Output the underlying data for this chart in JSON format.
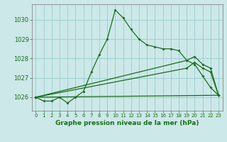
{
  "title": "Graphe pression niveau de la mer (hPa)",
  "bg_color": "#cce8e8",
  "grid_color": "#99cccc",
  "line_color": "#1a6e1a",
  "xlim": [
    -0.5,
    23.5
  ],
  "ylim": [
    1025.3,
    1030.8
  ],
  "yticks": [
    1026,
    1027,
    1028,
    1029,
    1030
  ],
  "xticks": [
    0,
    1,
    2,
    3,
    4,
    5,
    6,
    7,
    8,
    9,
    10,
    11,
    12,
    13,
    14,
    15,
    16,
    17,
    18,
    19,
    20,
    21,
    22,
    23
  ],
  "series_main": {
    "x": [
      0,
      1,
      2,
      3,
      4,
      5,
      6,
      7,
      8,
      9,
      10,
      11,
      12,
      13,
      14,
      15,
      16,
      17,
      18,
      19,
      20,
      21,
      22,
      23
    ],
    "y": [
      1026.0,
      1025.8,
      1025.8,
      1026.0,
      1025.7,
      1026.0,
      1026.3,
      1027.3,
      1028.2,
      1029.0,
      1030.5,
      1030.1,
      1029.5,
      1029.0,
      1028.7,
      1028.6,
      1028.5,
      1028.5,
      1028.4,
      1027.9,
      1027.7,
      1027.1,
      1026.5,
      1026.1
    ]
  },
  "series_flat": {
    "x": [
      0,
      23
    ],
    "y": [
      1026.0,
      1026.1
    ]
  },
  "series_diag1": {
    "x": [
      0,
      19,
      20,
      21,
      22,
      23
    ],
    "y": [
      1026.0,
      1027.5,
      1027.8,
      1027.5,
      1027.3,
      1026.1
    ]
  },
  "series_diag2": {
    "x": [
      0,
      19,
      20,
      21,
      22,
      23
    ],
    "y": [
      1026.0,
      1027.9,
      1028.1,
      1027.7,
      1027.5,
      1026.1
    ]
  }
}
